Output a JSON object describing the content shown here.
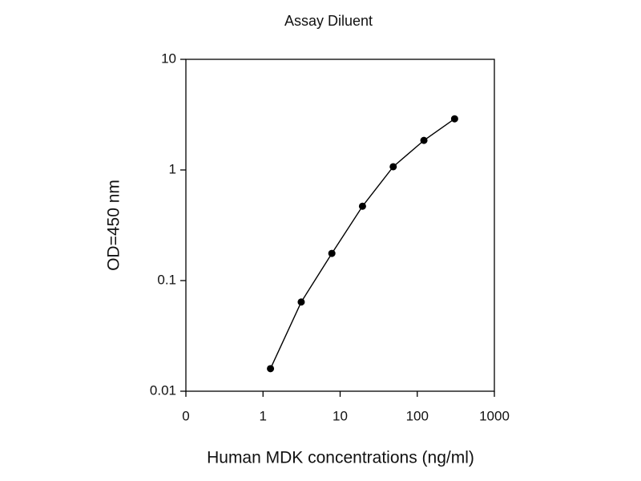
{
  "chart_data": {
    "type": "line",
    "title": "Assay Diluent",
    "x_label": "Human MDK concentrations (ng/ml)",
    "y_label": "OD=450 nm",
    "x": [
      1.25,
      3.13,
      7.81,
      19.5,
      48.8,
      122,
      305
    ],
    "series": [
      {
        "values": [
          0.016,
          0.064,
          0.176,
          0.47,
          1.07,
          1.85,
          2.9
        ],
        "color": "#000000"
      }
    ],
    "xscale": "log",
    "yscale": "log",
    "xlim": [
      0.1,
      1000
    ],
    "ylim": [
      0.01,
      10
    ],
    "xticks": [
      {
        "value": 0.1,
        "label": "0"
      },
      1,
      10,
      100,
      1000
    ],
    "yticks": [
      0.01,
      0.1,
      1,
      10
    ],
    "grid": false,
    "markers": true
  }
}
